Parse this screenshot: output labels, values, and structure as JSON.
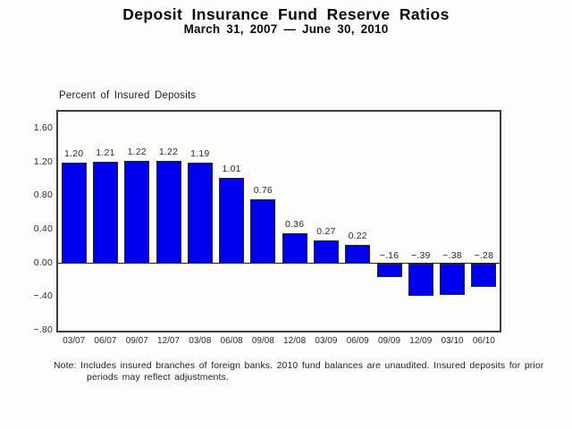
{
  "chart_data": {
    "type": "bar",
    "title": "Deposit Insurance Fund Reserve Ratios",
    "subtitle": "March 31, 2007 — June 30, 2010",
    "axis_title": "Percent of Insured Deposits",
    "categories": [
      "03/07",
      "06/07",
      "09/07",
      "12/07",
      "03/08",
      "06/08",
      "09/08",
      "12/08",
      "03/09",
      "06/09",
      "09/09",
      "12/09",
      "03/10",
      "06/10"
    ],
    "values": [
      1.2,
      1.21,
      1.22,
      1.22,
      1.19,
      1.01,
      0.76,
      0.36,
      0.27,
      0.22,
      -0.16,
      -0.39,
      -0.38,
      -0.28
    ],
    "value_labels": [
      "1.20",
      "1.21",
      "1.22",
      "1.22",
      "1.19",
      "1.01",
      "0.76",
      "0.36",
      "0.27",
      "0.22",
      "−.16",
      "−.39",
      "−.38",
      "−.28"
    ],
    "y_ticks": [
      {
        "value": 1.6,
        "label": "1.60"
      },
      {
        "value": 1.2,
        "label": "1.20"
      },
      {
        "value": 0.8,
        "label": "0.80"
      },
      {
        "value": 0.4,
        "label": "0.40"
      },
      {
        "value": 0.0,
        "label": "0.00"
      },
      {
        "value": -0.4,
        "label": "−.40"
      },
      {
        "value": -0.8,
        "label": "−.80"
      }
    ],
    "ylim": [
      -0.8,
      1.8
    ],
    "grid": false,
    "legend": "none",
    "bar_color": "#0000ee",
    "bar_border_color": "#252525",
    "axis_color": "#3c3c3c",
    "note": {
      "label": "Note:",
      "line1": "Includes insured branches of foreign banks. 2010 fund balances are unaudited. Insured deposits for prior",
      "line2": "periods may reflect adjustments."
    }
  }
}
